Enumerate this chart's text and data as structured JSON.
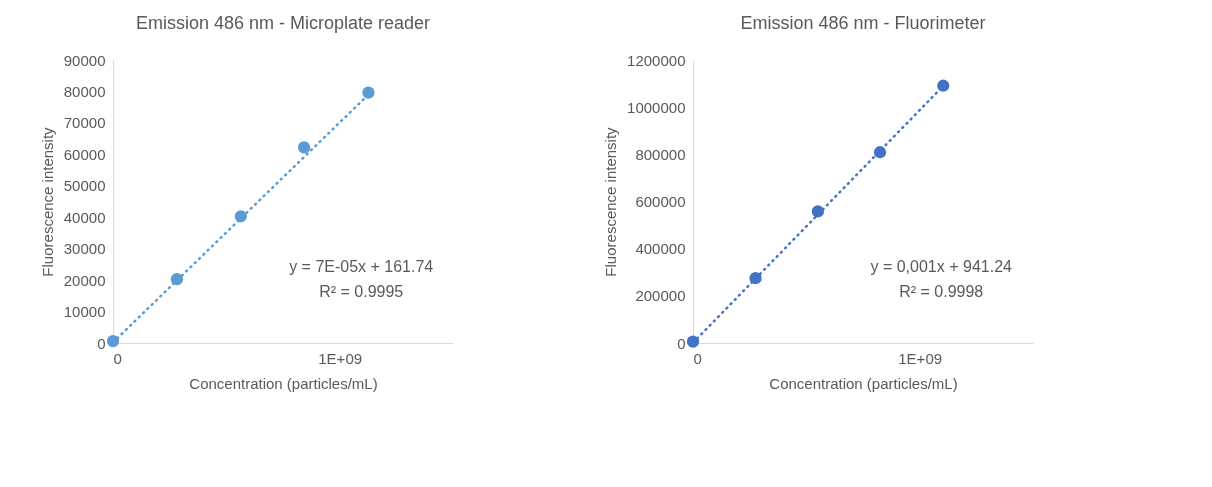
{
  "chart_data": [
    {
      "type": "scatter",
      "title": "Emission 486 nm - Microplate reader",
      "xlabel": "Concentration (particles/mL)",
      "ylabel": "Fluorescence intensity",
      "series": [
        {
          "marker": "circle",
          "color": "#5b9bd5",
          "x": [
            0,
            282000000,
            564000000,
            843000000,
            1127000000
          ],
          "values": [
            600,
            20300,
            40300,
            62200,
            79600
          ]
        },
        {
          "type": "line",
          "color": "#5b9bd5",
          "line_style": "dotted",
          "x": [
            0,
            1127000000
          ],
          "values": [
            200,
            79000
          ]
        }
      ],
      "annotations": [
        "y = 7E-05x + 161.74",
        "R² = 0.9995"
      ],
      "xlim": [
        0,
        1500000000
      ],
      "xticks": [
        0,
        {
          "value": 1000000000,
          "label": "1E+09"
        }
      ],
      "ylim": [
        0,
        90000
      ],
      "yticks": [
        0,
        10000,
        20000,
        30000,
        40000,
        50000,
        60000,
        70000,
        80000,
        90000
      ],
      "grid": false
    },
    {
      "type": "scatter",
      "title": "Emission 486 nm - Fluorimeter",
      "xlabel": "Concentration (particles/mL)",
      "ylabel": "Fluorescence intensity",
      "series": [
        {
          "marker": "circle",
          "color": "#4472c4",
          "x": [
            0,
            276000000,
            551000000,
            825000000,
            1104000000
          ],
          "values": [
            6000,
            275000,
            558000,
            809000,
            1091000
          ]
        },
        {
          "type": "line",
          "color": "#4472c4",
          "line_style": "dotted",
          "x": [
            0,
            1104000000
          ],
          "values": [
            1000,
            1090000
          ]
        }
      ],
      "annotations": [
        "y = 0,001x + 941.24",
        "R² = 0.9998"
      ],
      "xlim": [
        0,
        1500000000
      ],
      "xticks": [
        0,
        {
          "value": 1000000000,
          "label": "1E+09"
        }
      ],
      "ylim": [
        0,
        1200000
      ],
      "yticks": [
        0,
        200000,
        400000,
        600000,
        800000,
        1000000,
        1200000
      ],
      "grid": false
    }
  ]
}
